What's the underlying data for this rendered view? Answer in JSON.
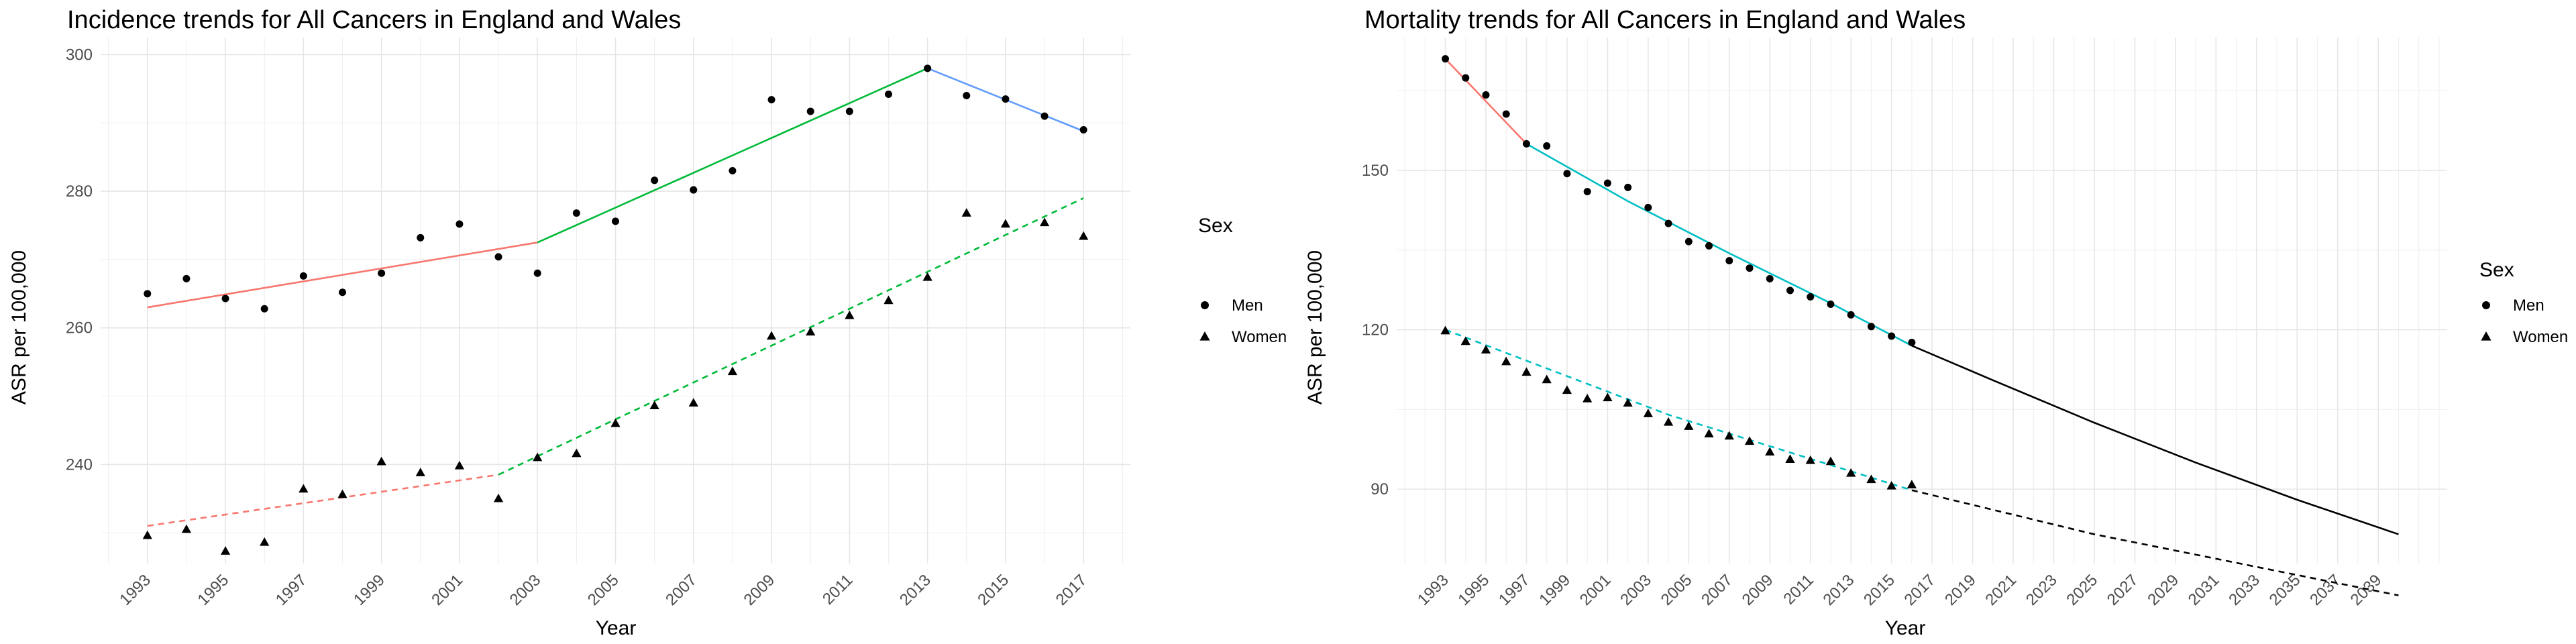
{
  "chart_data": [
    {
      "type": "scatter",
      "title": "Incidence trends for All Cancers in England and Wales",
      "xlabel": "Year",
      "ylabel": "ASR per 100,000",
      "xlim": [
        1991.8,
        2018.2
      ],
      "ylim": [
        225.5,
        302.5
      ],
      "y_ticks": [
        240,
        260,
        280,
        300
      ],
      "x_ticks": [
        1993,
        1995,
        1997,
        1999,
        2001,
        2003,
        2005,
        2007,
        2009,
        2011,
        2013,
        2015,
        2017
      ],
      "grid": true,
      "legend": {
        "title": "Sex",
        "position": "right",
        "entries": [
          {
            "label": "Men",
            "shape": "circle"
          },
          {
            "label": "Women",
            "shape": "triangle"
          }
        ]
      },
      "series": [
        {
          "name": "Men",
          "shape": "circle",
          "x": [
            1993,
            1994,
            1995,
            1996,
            1997,
            1998,
            1999,
            2000,
            2001,
            2002,
            2003,
            2004,
            2005,
            2006,
            2007,
            2008,
            2009,
            2010,
            2011,
            2012,
            2013,
            2014,
            2015,
            2016,
            2017
          ],
          "y": [
            265.0,
            267.2,
            264.3,
            262.8,
            267.6,
            265.2,
            268.0,
            273.2,
            275.2,
            270.4,
            268.0,
            276.8,
            275.6,
            281.6,
            280.2,
            283.0,
            293.4,
            291.7,
            291.7,
            294.2,
            298.0,
            294.0,
            293.5,
            291.0,
            289.0
          ]
        },
        {
          "name": "Women",
          "shape": "triangle",
          "x": [
            1993,
            1994,
            1995,
            1996,
            1997,
            1998,
            1999,
            2000,
            2001,
            2002,
            2003,
            2004,
            2005,
            2006,
            2007,
            2008,
            2009,
            2010,
            2011,
            2012,
            2013,
            2014,
            2015,
            2016,
            2017
          ],
          "y": [
            229.6,
            230.5,
            227.3,
            228.6,
            236.4,
            235.6,
            240.4,
            238.8,
            239.8,
            235.0,
            241.0,
            241.6,
            246.0,
            248.6,
            249.0,
            253.6,
            258.8,
            259.4,
            261.8,
            264.0,
            267.4,
            276.8,
            275.2,
            275.4,
            273.4
          ]
        }
      ],
      "trend_lines": [
        {
          "sex": "Men",
          "style": "solid",
          "color": "#f8766d",
          "x": [
            1993,
            2003
          ],
          "y": [
            263.0,
            272.5
          ]
        },
        {
          "sex": "Men",
          "style": "solid",
          "color": "#00ba38",
          "x": [
            2003,
            2013
          ],
          "y": [
            272.5,
            298.0
          ]
        },
        {
          "sex": "Men",
          "style": "solid",
          "color": "#619cff",
          "x": [
            2013,
            2017
          ],
          "y": [
            298.0,
            288.8
          ]
        },
        {
          "sex": "Women",
          "style": "dashed",
          "color": "#f8766d",
          "x": [
            1993,
            2002
          ],
          "y": [
            231.0,
            238.5
          ]
        },
        {
          "sex": "Women",
          "style": "dashed",
          "color": "#00ba38",
          "x": [
            2002,
            2017
          ],
          "y": [
            238.5,
            279.0
          ]
        }
      ]
    },
    {
      "type": "scatter",
      "title": "Mortality trends for All Cancers in England and Wales",
      "xlabel": "Year",
      "ylabel": "ASR per 100,000",
      "xlim": [
        1990.6,
        2042.4
      ],
      "ylim": [
        76.0,
        175.0
      ],
      "y_ticks": [
        90,
        120,
        150
      ],
      "x_ticks": [
        1993,
        1995,
        1997,
        1999,
        2001,
        2003,
        2005,
        2007,
        2009,
        2011,
        2013,
        2015,
        2017,
        2019,
        2021,
        2023,
        2025,
        2027,
        2029,
        2031,
        2033,
        2035,
        2037,
        2039
      ],
      "grid": true,
      "legend": {
        "title": "Sex",
        "position": "right",
        "entries": [
          {
            "label": "Men",
            "shape": "circle"
          },
          {
            "label": "Women",
            "shape": "triangle"
          }
        ]
      },
      "series": [
        {
          "name": "Men",
          "shape": "circle",
          "x": [
            1993,
            1994,
            1995,
            1996,
            1997,
            1998,
            1999,
            2000,
            2001,
            2002,
            2003,
            2004,
            2005,
            2006,
            2007,
            2008,
            2009,
            2010,
            2011,
            2012,
            2013,
            2014,
            2015,
            2016
          ],
          "y": [
            171.0,
            167.4,
            164.2,
            160.6,
            155.0,
            154.6,
            149.4,
            146.0,
            147.6,
            146.8,
            143.0,
            140.0,
            136.6,
            135.8,
            133.0,
            131.6,
            129.6,
            127.4,
            126.2,
            124.8,
            122.8,
            120.6,
            118.8,
            117.6
          ]
        },
        {
          "name": "Women",
          "shape": "triangle",
          "x": [
            1993,
            1994,
            1995,
            1996,
            1997,
            1998,
            1999,
            2000,
            2001,
            2002,
            2003,
            2004,
            2005,
            2006,
            2007,
            2008,
            2009,
            2010,
            2011,
            2012,
            2013,
            2014,
            2015,
            2016
          ],
          "y": [
            119.8,
            117.8,
            116.2,
            114.0,
            112.0,
            110.6,
            108.6,
            107.0,
            107.2,
            106.2,
            104.2,
            102.6,
            101.8,
            100.4,
            100.0,
            99.0,
            97.0,
            95.6,
            95.4,
            95.2,
            93.0,
            91.8,
            90.6,
            90.8
          ]
        }
      ],
      "trend_lines": [
        {
          "sex": "Men",
          "style": "solid",
          "color": "#f8766d",
          "x": [
            1993,
            1995,
            1997
          ],
          "y": [
            171.0,
            163.0,
            155.0
          ]
        },
        {
          "sex": "Men",
          "style": "solid",
          "color": "#00bfc4",
          "x": [
            1997,
            2002,
            2007,
            2012,
            2016
          ],
          "y": [
            155.0,
            144.2,
            134.4,
            125.0,
            117.0
          ]
        },
        {
          "sex": "Men",
          "style": "solid",
          "color": "#000000",
          "x": [
            2016,
            2020,
            2025,
            2030,
            2035,
            2040
          ],
          "y": [
            117.0,
            110.5,
            102.5,
            95.0,
            88.0,
            81.5
          ]
        },
        {
          "sex": "Women",
          "style": "dashed",
          "color": "#00bfc4",
          "x": [
            1993,
            2004,
            2016
          ],
          "y": [
            120.0,
            104.0,
            89.8
          ]
        },
        {
          "sex": "Women",
          "style": "dashed",
          "color": "#000000",
          "x": [
            2016,
            2025,
            2040
          ],
          "y": [
            89.8,
            81.5,
            70.0
          ]
        }
      ]
    }
  ]
}
